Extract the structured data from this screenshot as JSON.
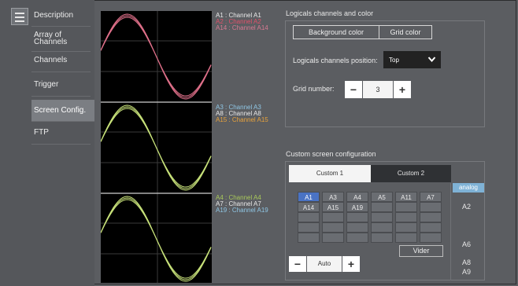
{
  "sidebar": {
    "items": [
      {
        "label": "Description"
      },
      {
        "label": "Array of Channels"
      },
      {
        "label": "Channels"
      },
      {
        "label": "Trigger"
      },
      {
        "label": "Screen Config."
      },
      {
        "label": "FTP"
      }
    ],
    "active_index": 4
  },
  "legends": [
    {
      "lines": [
        {
          "text": "A1 : Channel A1",
          "color": "#e8e8e8"
        },
        {
          "text": "A2 : Channel A2",
          "color": "#e0506a"
        },
        {
          "text": "A14 : Channel A14",
          "color": "#d87a92"
        }
      ]
    },
    {
      "lines": [
        {
          "text": "A3 : Channel A3",
          "color": "#8fc6e4"
        },
        {
          "text": "A8 : Channel A8",
          "color": "#e8e8e8"
        },
        {
          "text": "A15 : Channel A15",
          "color": "#e8a23c"
        }
      ]
    },
    {
      "lines": [
        {
          "text": "A4 : Channel A4",
          "color": "#a8c85a"
        },
        {
          "text": "A7 : Channel A7",
          "color": "#e8e8e8"
        },
        {
          "text": "A19 : Channel A19",
          "color": "#8fc6e4"
        }
      ]
    }
  ],
  "colors": {
    "trace_pink": "#e0708a",
    "trace_green": "#c8e27a",
    "selected_cell": "#4a73c4"
  },
  "logicals": {
    "title": "Logicals channels and color",
    "background_color_label": "Background color",
    "grid_color_label": "Grid color",
    "position_label": "Logicals channels position:",
    "position_value": "Top",
    "grid_number_label": "Grid number:",
    "grid_number_value": "3",
    "minus": "−",
    "plus": "+"
  },
  "custom": {
    "title": "Custom screen configuration",
    "tabs": [
      {
        "label": "Custom 1"
      },
      {
        "label": "Custom 2"
      }
    ],
    "grid_rows": [
      [
        "A1",
        "A3",
        "A4",
        "A5",
        "A11",
        "A7"
      ],
      [
        "A14",
        "A15",
        "A19",
        "",
        "",
        ""
      ],
      [
        "",
        "",
        "",
        "",
        "",
        ""
      ],
      [
        "",
        "",
        "",
        "",
        "",
        ""
      ],
      [
        "",
        "",
        "",
        "",
        "",
        ""
      ]
    ],
    "selected_cell": "A1",
    "clear_label": "Vider",
    "auto_label": "Auto",
    "minus": "−",
    "plus": "+",
    "side_header": "analog",
    "side_items": [
      "A2",
      "A6",
      "A8",
      "A9"
    ]
  }
}
